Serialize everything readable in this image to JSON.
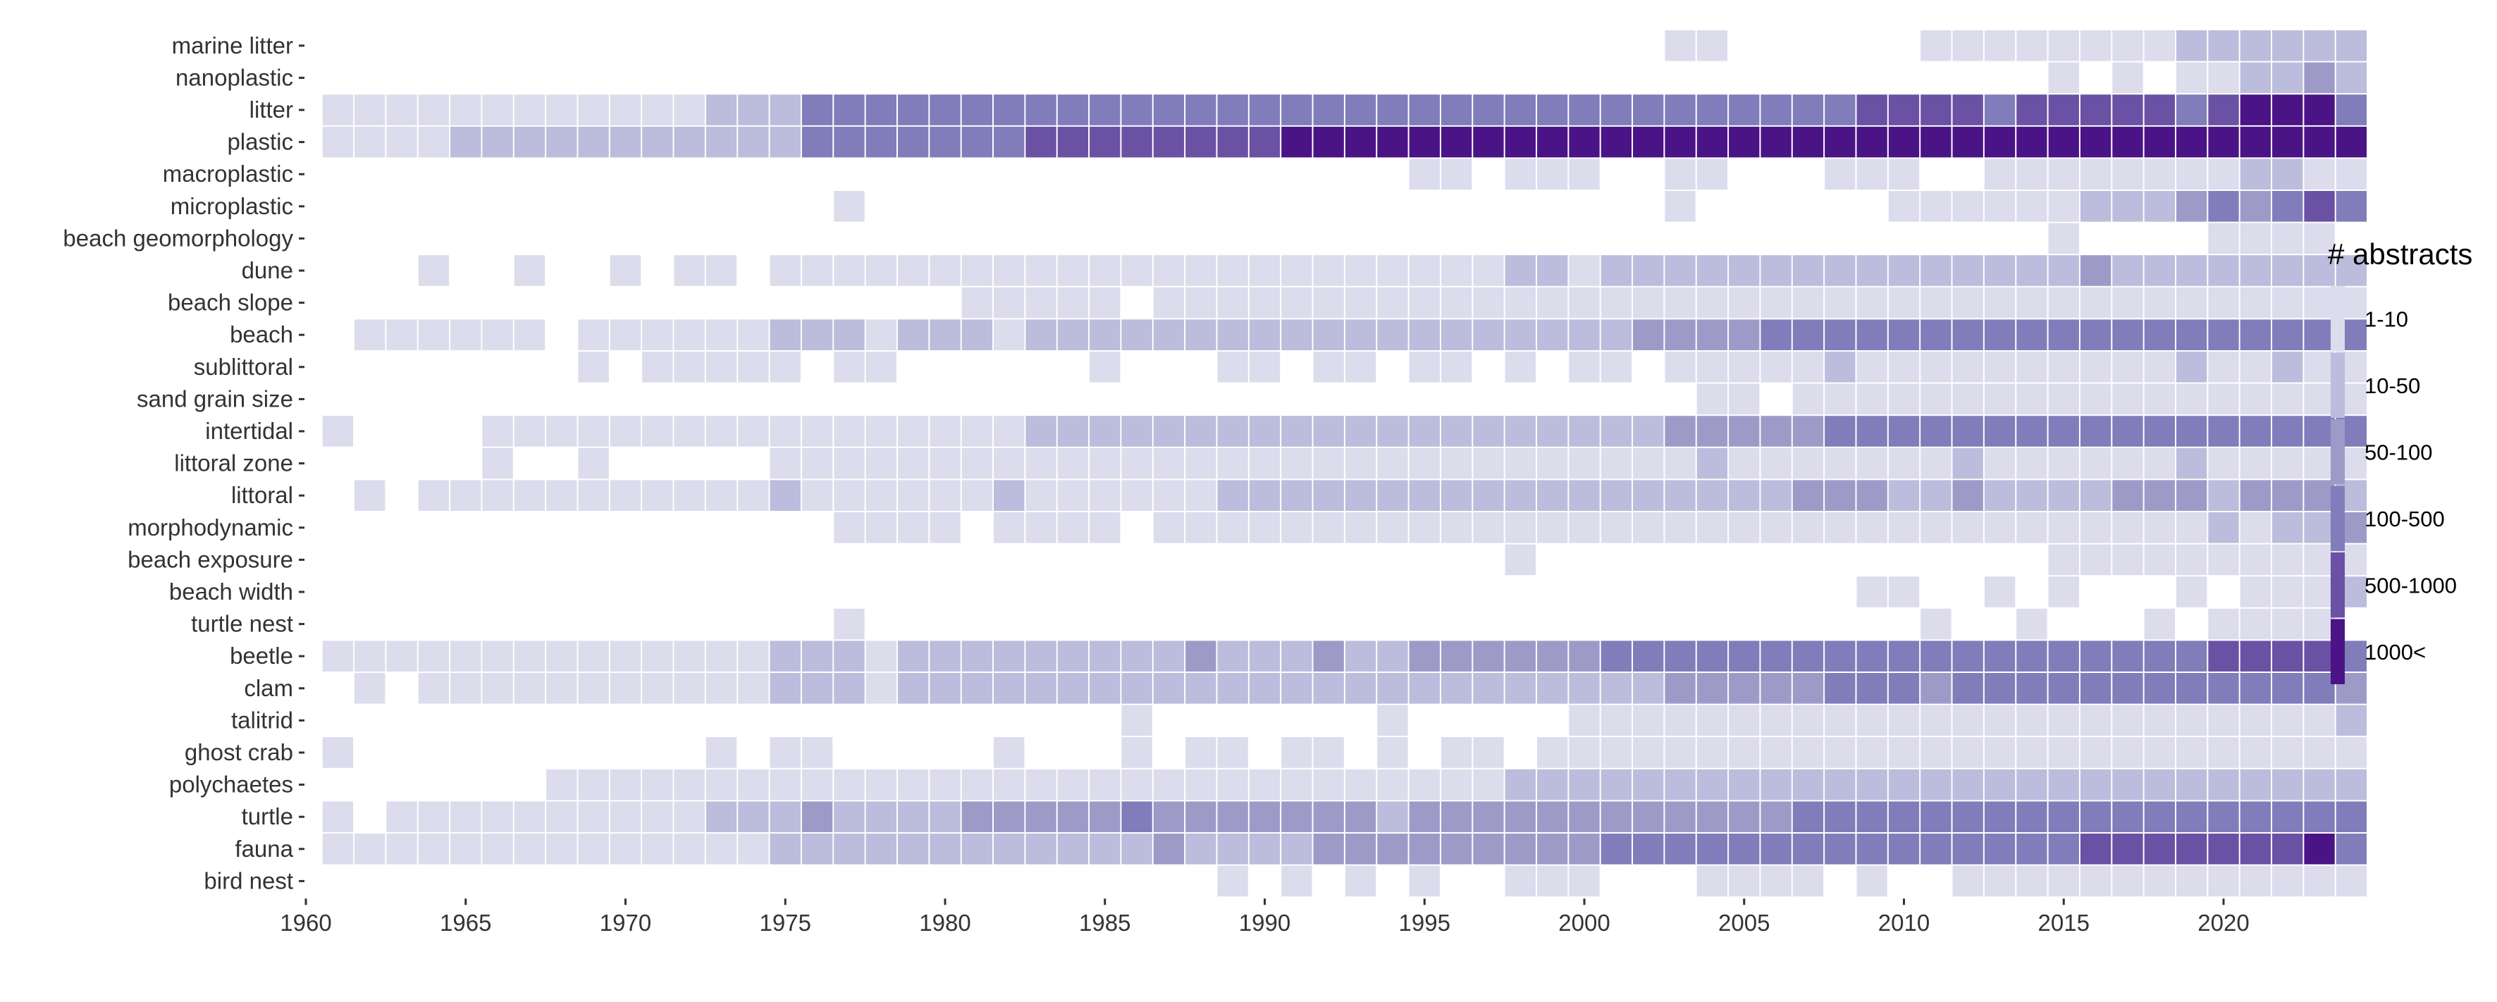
{
  "chart_data": {
    "type": "heatmap",
    "title": "",
    "xlabel": "",
    "ylabel": "",
    "x_ticks": [
      1960,
      1965,
      1970,
      1975,
      1980,
      1985,
      1990,
      1995,
      2000,
      2005,
      2010,
      2015,
      2020
    ],
    "xlim": [
      1960,
      2021
    ],
    "grid": false,
    "legend": {
      "title": "# abstracts",
      "placement": "right",
      "levels": [
        {
          "label": "1-10",
          "color": "#dcdcec"
        },
        {
          "label": "10-50",
          "color": "#bcbcdc"
        },
        {
          "label": "50-100",
          "color": "#9e9ac8"
        },
        {
          "label": "100-500",
          "color": "#807dba"
        },
        {
          "label": "500-1000",
          "color": "#6a51a3"
        },
        {
          "label": "1000<",
          "color": "#4a1486"
        }
      ]
    },
    "years_first": 1961,
    "level_codes": "0 = none, 1 = 1-10, 2 = 10-50, 3 = 50-100, 4 = 100-500, 5 = 500-1000, 6 = 1000<",
    "rows": [
      {
        "term": "marine litter",
        "levels": "0000000000000000000000000000000000000000001100000011111111222222"
      },
      {
        "term": "nanoplastic",
        "levels": "0000000000000000000000000000000000000000000000000000001010112232"
      },
      {
        "term": "litter",
        "levels": "1111111111112224444444444444444444444444444444445555455555456664"
      },
      {
        "term": "plastic",
        "levels": "1111222222222224444444555555556666666666666666666666666666666666"
      },
      {
        "term": "macroplastic",
        "levels": "0000000000000000000000000000000000110111001100011100111111112211"
      },
      {
        "term": "microplastic",
        "levels": "0000000000000000100000000000000000000000001000000111111222343454"
      },
      {
        "term": "beach geomorphology",
        "levels": "0000000000000000000000000000000000000000000000000000001000011110"
      },
      {
        "term": "dune",
        "levels": "0001001001011011111111111111111111111221222222222222222322222222"
      },
      {
        "term": "beach slope",
        "levels": "0000000000000000000011111011111111111111111111111111111111111111"
      },
      {
        "term": "beach",
        "levels": "0111111011111122212221222222222222222222233334444444444444444444"
      },
      {
        "term": "sublittoral",
        "levels": "0000000010111110110000001000110110110101101111121111111111211211"
      },
      {
        "term": "sand grain size",
        "levels": "0000000000000000000000000000000000000000000110111111111111111111"
      },
      {
        "term": "intertidal",
        "levels": "1000011111111111111111222222222222222222223333344444444444444444"
      },
      {
        "term": "littoral zone",
        "levels": "0000010010000011111111111111111111111111111211111112111111211111"
      },
      {
        "term": "littoral",
        "levels": "0101111111111121111112111111222222222222222222333223222233323332"
      },
      {
        "term": "morphodynamic",
        "levels": "0000000000000000111101111011111111111111111111111111111111121223"
      },
      {
        "term": "beach exposure",
        "levels": "0000000000000000000000000000000000000100000000000000001111111111"
      },
      {
        "term": "beach width",
        "levels": "0000000000000000000000000000000000000000000000001100101000101112"
      },
      {
        "term": "turtle nest",
        "levels": "0000000000000000100000000000000000000000000000000010010001011110"
      },
      {
        "term": "beetle",
        "levels": "1111111111111122212222222223222322333333444444444444444444455554"
      },
      {
        "term": "clam",
        "levels": "0101111111111122212222222222222222222222223333344434444444444443"
      },
      {
        "term": "talitrid",
        "levels": "0000000000000000000000000100000001000001111111111111111111111112"
      },
      {
        "term": "ghost crab",
        "levels": "1000000000001011000001000101101101011011111111111111111111111111"
      },
      {
        "term": "polychaetes",
        "levels": "0000000111111111111111111111111111111222222222222222222222222222"
      },
      {
        "term": "turtle",
        "levels": "1011111111112223222233333433333332333333333333444444444444444444"
      },
      {
        "term": "fauna",
        "levels": "1111111111111122222222222232222333333333444444444444444555555564"
      },
      {
        "term": "bird nest",
        "levels": "0000000000000000000000000000101010100111000111101001111111111111"
      }
    ]
  }
}
